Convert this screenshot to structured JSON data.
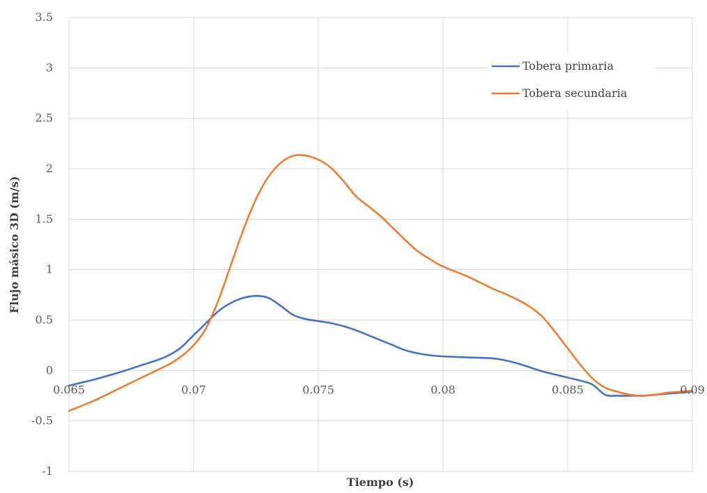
{
  "chart_data": {
    "type": "line",
    "title": "",
    "xlabel": "Tiempo (s)",
    "ylabel": "Flujo másico 3D (m/s)",
    "xlim": [
      0.065,
      0.09
    ],
    "ylim": [
      -1,
      3.5
    ],
    "xticks": [
      0.065,
      0.07,
      0.075,
      0.08,
      0.085,
      0.09
    ],
    "xtick_labels": [
      "0.065",
      "0.07",
      "0.075",
      "0.08",
      "0.085",
      "0.09"
    ],
    "yticks": [
      -1,
      -0.5,
      0,
      0.5,
      1,
      1.5,
      2,
      2.5,
      3,
      3.5
    ],
    "ytick_labels": [
      "-1",
      "-0.5",
      "0",
      "0.5",
      "1",
      "1.5",
      "2",
      "2.5",
      "3",
      "3.5"
    ],
    "grid": true,
    "legend_position": "top-right",
    "series": [
      {
        "name": "Tobera primaria",
        "color": "#4472c4",
        "x": [
          0.065,
          0.066,
          0.067,
          0.068,
          0.0685,
          0.069,
          0.0695,
          0.07,
          0.0705,
          0.071,
          0.0715,
          0.072,
          0.0725,
          0.073,
          0.0735,
          0.074,
          0.0745,
          0.075,
          0.0755,
          0.076,
          0.0765,
          0.077,
          0.0775,
          0.078,
          0.0785,
          0.079,
          0.0795,
          0.08,
          0.081,
          0.082,
          0.0825,
          0.083,
          0.0835,
          0.084,
          0.0845,
          0.085,
          0.0855,
          0.086,
          0.0865,
          0.087,
          0.0875,
          0.088,
          0.0885,
          0.089,
          0.0895,
          0.09
        ],
        "y": [
          -0.15,
          -0.09,
          -0.02,
          0.06,
          0.1,
          0.15,
          0.23,
          0.35,
          0.47,
          0.59,
          0.67,
          0.72,
          0.74,
          0.72,
          0.64,
          0.55,
          0.51,
          0.49,
          0.47,
          0.44,
          0.4,
          0.35,
          0.3,
          0.25,
          0.2,
          0.17,
          0.15,
          0.14,
          0.13,
          0.12,
          0.1,
          0.07,
          0.03,
          -0.01,
          -0.04,
          -0.07,
          -0.1,
          -0.14,
          -0.24,
          -0.25,
          -0.25,
          -0.25,
          -0.24,
          -0.23,
          -0.22,
          -0.21
        ]
      },
      {
        "name": "Tobera secundaria",
        "color": "#ed7d31",
        "x": [
          0.065,
          0.066,
          0.067,
          0.068,
          0.069,
          0.0695,
          0.07,
          0.0705,
          0.071,
          0.0715,
          0.072,
          0.0725,
          0.073,
          0.0735,
          0.074,
          0.0745,
          0.075,
          0.0755,
          0.076,
          0.0765,
          0.077,
          0.0775,
          0.078,
          0.0785,
          0.079,
          0.0795,
          0.08,
          0.081,
          0.082,
          0.0825,
          0.083,
          0.0835,
          0.084,
          0.0845,
          0.085,
          0.0855,
          0.086,
          0.0865,
          0.087,
          0.0875,
          0.088,
          0.0885,
          0.089,
          0.0895,
          0.09
        ],
        "y": [
          -0.4,
          -0.3,
          -0.18,
          -0.06,
          0.06,
          0.14,
          0.25,
          0.42,
          0.7,
          1.05,
          1.4,
          1.7,
          1.92,
          2.06,
          2.13,
          2.13,
          2.09,
          2.01,
          1.88,
          1.73,
          1.63,
          1.53,
          1.41,
          1.29,
          1.18,
          1.1,
          1.03,
          0.93,
          0.81,
          0.76,
          0.7,
          0.63,
          0.53,
          0.38,
          0.22,
          0.06,
          -0.08,
          -0.17,
          -0.21,
          -0.24,
          -0.25,
          -0.24,
          -0.22,
          -0.21,
          -0.2
        ]
      }
    ]
  }
}
